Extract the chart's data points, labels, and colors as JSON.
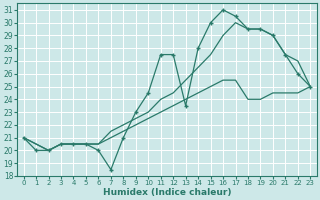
{
  "xlabel": "Humidex (Indice chaleur)",
  "xlim": [
    -0.5,
    23.5
  ],
  "ylim": [
    18,
    31.5
  ],
  "yticks": [
    18,
    19,
    20,
    21,
    22,
    23,
    24,
    25,
    26,
    27,
    28,
    29,
    30,
    31
  ],
  "xticks": [
    0,
    1,
    2,
    3,
    4,
    5,
    6,
    7,
    8,
    9,
    10,
    11,
    12,
    13,
    14,
    15,
    16,
    17,
    18,
    19,
    20,
    21,
    22,
    23
  ],
  "bg_color": "#cde8e8",
  "grid_color": "#b0d4d4",
  "line_color": "#2a7a6a",
  "line1_x": [
    0,
    1,
    2,
    3,
    4,
    5,
    6,
    7,
    8,
    9,
    10,
    11,
    12,
    13,
    14,
    15,
    16,
    17,
    18,
    19,
    20,
    21,
    22,
    23
  ],
  "line1_y": [
    21,
    20,
    20,
    20.5,
    20.5,
    20.5,
    20,
    18.5,
    21,
    23,
    24.5,
    27.5,
    27.5,
    23.5,
    28,
    30,
    31,
    30.5,
    29.5,
    29.5,
    29,
    27.5,
    26,
    25
  ],
  "line2_x": [
    0,
    1,
    2,
    3,
    4,
    5,
    6,
    7,
    8,
    9,
    10,
    11,
    12,
    13,
    14,
    15,
    16,
    17,
    18,
    19,
    20,
    21,
    22,
    23
  ],
  "line2_y": [
    21,
    20.5,
    20,
    20.5,
    20.5,
    20.5,
    20.5,
    21,
    21.5,
    22,
    22.5,
    23,
    23.5,
    24,
    24.5,
    25,
    25.5,
    25.5,
    24,
    24,
    24.5,
    24.5,
    24.5,
    25
  ],
  "line3_x": [
    0,
    1,
    2,
    3,
    4,
    5,
    6,
    7,
    8,
    9,
    10,
    11,
    12,
    13,
    14,
    15,
    16,
    17,
    18,
    19,
    20,
    21,
    22,
    23
  ],
  "line3_y": [
    21,
    20.5,
    20,
    20.5,
    20.5,
    20.5,
    20.5,
    21.5,
    22,
    22.5,
    23,
    24,
    24.5,
    25.5,
    26.5,
    27.5,
    29,
    30,
    29.5,
    29.5,
    29,
    27.5,
    27,
    25
  ]
}
